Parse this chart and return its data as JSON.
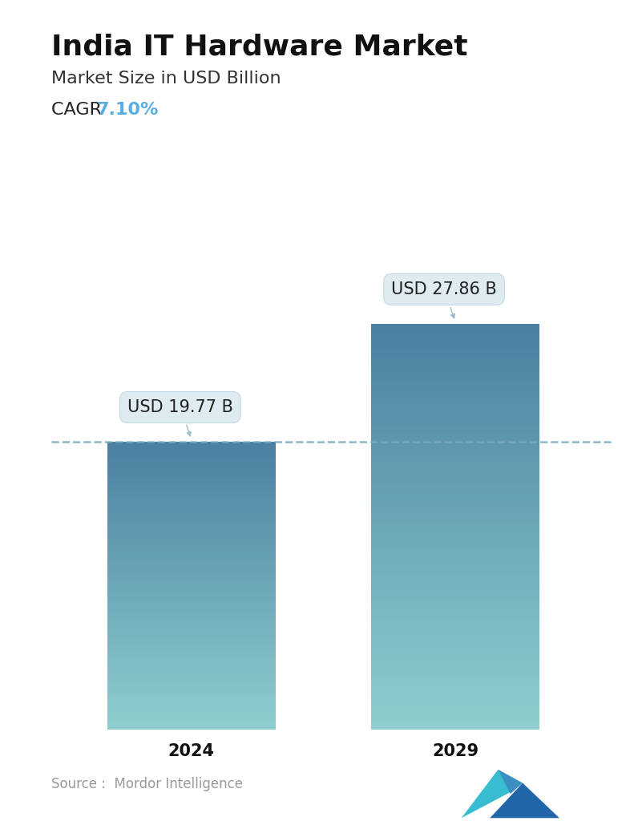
{
  "title": "India IT Hardware Market",
  "subtitle": "Market Size in USD Billion",
  "cagr_label": "CAGR ",
  "cagr_value": "7.10%",
  "cagr_color": "#5aade0",
  "categories": [
    "2024",
    "2029"
  ],
  "values": [
    19.77,
    27.86
  ],
  "bar_labels": [
    "USD 19.77 B",
    "USD 27.86 B"
  ],
  "bar_color_top": "#4a7fa0",
  "bar_color_bottom": "#8ecece",
  "dashed_line_color": "#7aaabe",
  "dashed_line_value": 19.77,
  "source_text": "Source :  Mordor Intelligence",
  "source_color": "#999999",
  "background_color": "#ffffff",
  "ylim": [
    0,
    33
  ],
  "title_fontsize": 26,
  "subtitle_fontsize": 16,
  "cagr_fontsize": 16,
  "tick_fontsize": 15,
  "label_fontsize": 15,
  "source_fontsize": 12
}
